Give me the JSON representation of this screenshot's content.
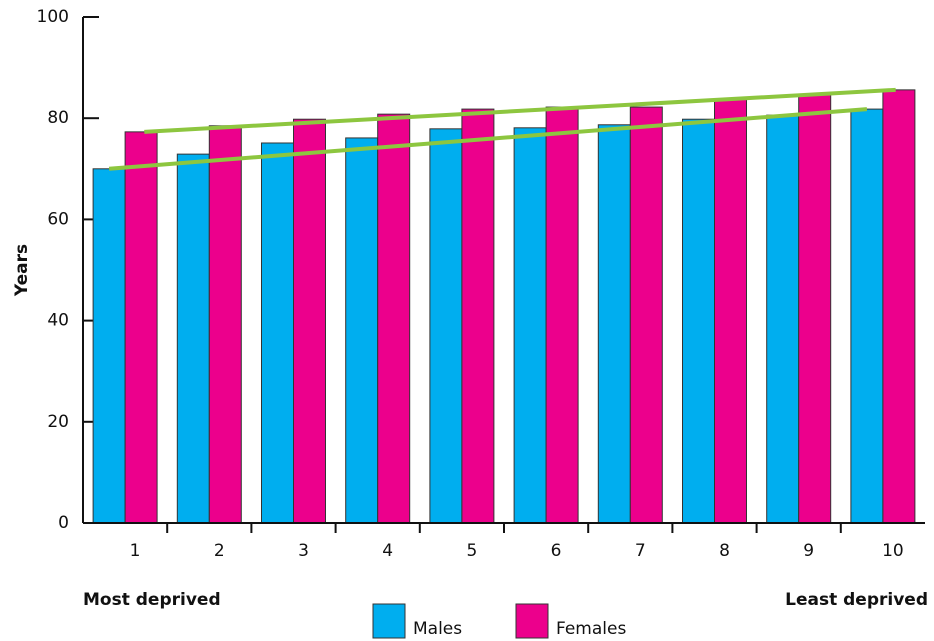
{
  "chart_data": {
    "type": "bar",
    "y_label": "Years",
    "x_left_label": "Most deprived",
    "x_right_label": "Least deprived",
    "categories": [
      "1",
      "2",
      "3",
      "4",
      "5",
      "6",
      "7",
      "8",
      "9",
      "10"
    ],
    "series": [
      {
        "name": "Males",
        "color": "#00aeef",
        "values": [
          70.0,
          72.9,
          75.1,
          76.1,
          77.9,
          78.1,
          78.7,
          79.8,
          80.6,
          81.8
        ]
      },
      {
        "name": "Females",
        "color": "#ec008c",
        "values": [
          77.3,
          78.5,
          79.8,
          80.8,
          81.8,
          82.2,
          82.2,
          83.8,
          84.6,
          85.6
        ]
      }
    ],
    "trend_lines": [
      {
        "color": "#8dc63f",
        "values": [
          70.0,
          81.8
        ]
      },
      {
        "color": "#8dc63f",
        "values": [
          77.3,
          85.6
        ]
      }
    ],
    "ylim": [
      0,
      100
    ],
    "yticks": [
      0,
      20,
      40,
      60,
      80,
      100
    ],
    "legend": "bottom"
  }
}
